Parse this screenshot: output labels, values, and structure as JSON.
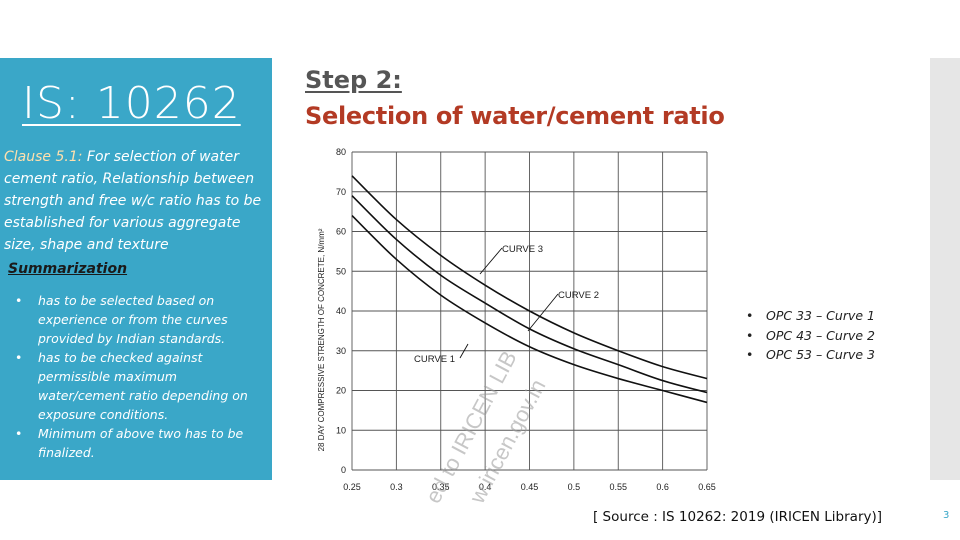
{
  "left": {
    "title": "IS: 10262",
    "clause_label": "Clause 5.1:",
    "clause_text": " For selection of water cement ratio, Relationship between strength and free w/c ratio has to be established for various aggregate size, shape and texture",
    "summary_title": "Summarization",
    "summary_items": [
      "has to be selected based on experience or from the curves provided by Indian standards.",
      "has to be checked against permissible maximum water/cement ratio depending on exposure conditions.",
      "Minimum of above two has to be finalized."
    ]
  },
  "header": {
    "step": "Step 2: ",
    "subtitle": "Selection of water/cement ratio"
  },
  "legend": [
    "OPC 33 – Curve 1",
    "OPC 43 – Curve 2",
    "OPC 53 – Curve 3"
  ],
  "source": "[ Source : IS 10262: 2019 (IRICEN Library)]",
  "page_number": "3",
  "colors": {
    "panel": "#3aa7c8",
    "accent": "#b33a24",
    "step": "#555555"
  },
  "chart_data": {
    "type": "line",
    "ylabel": "28 DAY COMPRESSIVE STRENGTH OF CONCRETE, N/mm²",
    "xlabel": "",
    "x_ticks": [
      "0.25",
      "0.3",
      "0.35",
      "0.4",
      "0.45",
      "0.5",
      "0.55",
      "0.6",
      "0.65"
    ],
    "y_ticks": [
      "0",
      "10",
      "20",
      "30",
      "40",
      "50",
      "60",
      "70",
      "80"
    ],
    "xlim": [
      0.25,
      0.65
    ],
    "ylim": [
      0,
      80
    ],
    "grid": true,
    "series": [
      {
        "name": "CURVE 1",
        "x": [
          0.25,
          0.3,
          0.35,
          0.4,
          0.45,
          0.5,
          0.55,
          0.6,
          0.65
        ],
        "y": [
          64,
          53,
          44,
          37,
          31,
          26.5,
          23,
          20,
          17
        ]
      },
      {
        "name": "CURVE 2",
        "x": [
          0.25,
          0.3,
          0.35,
          0.4,
          0.45,
          0.5,
          0.55,
          0.6,
          0.65
        ],
        "y": [
          69,
          58,
          49,
          42,
          35.5,
          30.5,
          26.5,
          22.5,
          19.5
        ]
      },
      {
        "name": "CURVE 3",
        "x": [
          0.25,
          0.3,
          0.35,
          0.4,
          0.45,
          0.5,
          0.55,
          0.6,
          0.65
        ],
        "y": [
          74,
          63,
          54,
          46.5,
          40,
          34.5,
          30,
          26,
          23
        ]
      }
    ],
    "watermark": [
      "ed to IRICEN LIB",
      "w.iricen.gov.in"
    ]
  }
}
